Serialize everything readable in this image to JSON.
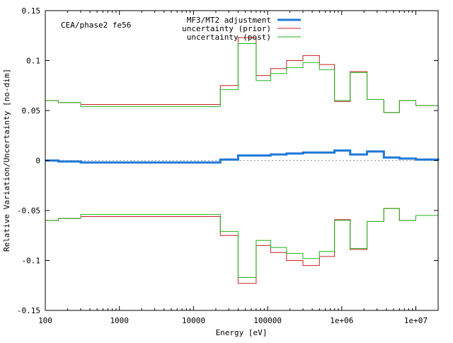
{
  "chart_data": {
    "type": "line",
    "step": true,
    "xscale": "log",
    "xlim": [
      100,
      20000000
    ],
    "ylim": [
      -0.15,
      0.15
    ],
    "xlabel": "Energy [eV]",
    "ylabel": "Relative Variation/Uncertainty [no-dim]",
    "annotation": "CEA/phase2 fe56",
    "legend_position": "top-center",
    "x_ticks": [
      {
        "value": 100,
        "label": "100"
      },
      {
        "value": 1000,
        "label": "1000"
      },
      {
        "value": 10000,
        "label": "10000"
      },
      {
        "value": 100000,
        "label": "100000"
      },
      {
        "value": 1000000,
        "label": "1e+06"
      },
      {
        "value": 10000000,
        "label": "1e+07"
      }
    ],
    "y_ticks": [
      {
        "value": -0.15,
        "label": "-0.15"
      },
      {
        "value": -0.1,
        "label": "-0.1"
      },
      {
        "value": -0.05,
        "label": "-0.05"
      },
      {
        "value": 0,
        "label": "0"
      },
      {
        "value": 0.05,
        "label": "0.05"
      },
      {
        "value": 0.1,
        "label": "0.1"
      },
      {
        "value": 0.15,
        "label": "0.15"
      }
    ],
    "zero_line": true,
    "bin_edges": [
      100,
      150,
      300,
      23000,
      40000,
      70000,
      110000,
      180000,
      300000,
      500000,
      800000,
      1300000,
      2200000,
      3700000,
      6000000,
      10000000,
      20000000
    ],
    "series": [
      {
        "name": "MF3/MT2 adjustment",
        "color": "#1e78d8",
        "thick": true,
        "values": [
          0.0,
          -0.001,
          -0.002,
          0.001,
          0.005,
          0.005,
          0.006,
          0.007,
          0.008,
          0.008,
          0.01,
          0.006,
          0.009,
          0.003,
          0.002,
          0.001,
          0.0
        ]
      },
      {
        "name": "uncertainty (prior)",
        "color": "#c81e1e",
        "mirrored": true,
        "values": [
          0.06,
          0.058,
          0.056,
          0.075,
          0.123,
          0.085,
          0.092,
          0.1,
          0.105,
          0.096,
          0.059,
          0.089,
          0.061,
          0.048,
          0.06,
          0.055,
          0.055
        ]
      },
      {
        "name": "uncertainty (post)",
        "color": "#1eb41e",
        "mirrored": true,
        "values": [
          0.06,
          0.058,
          0.054,
          0.071,
          0.117,
          0.08,
          0.087,
          0.093,
          0.098,
          0.091,
          0.06,
          0.088,
          0.061,
          0.048,
          0.06,
          0.055,
          0.055
        ]
      }
    ]
  }
}
